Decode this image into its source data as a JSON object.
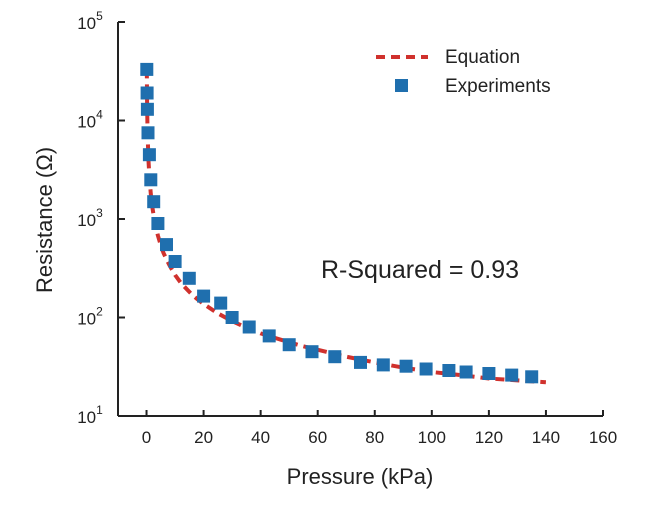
{
  "chart_data": {
    "type": "scatter",
    "xlabel": "Pressure (kPa)",
    "ylabel": "Resistance (Ω)",
    "xlim": [
      -10,
      160
    ],
    "ylim": [
      10,
      100000
    ],
    "yscale": "log",
    "x_ticks": [
      "0",
      "20",
      "40",
      "60",
      "80",
      "100",
      "120",
      "140",
      "160"
    ],
    "x_tick_values": [
      0,
      20,
      40,
      60,
      80,
      100,
      120,
      140,
      160
    ],
    "y_ticks": [
      {
        "base": "10",
        "exp": "1",
        "value": 10
      },
      {
        "base": "10",
        "exp": "2",
        "value": 100
      },
      {
        "base": "10",
        "exp": "3",
        "value": 1000
      },
      {
        "base": "10",
        "exp": "4",
        "value": 10000
      },
      {
        "base": "10",
        "exp": "5",
        "value": 100000
      }
    ],
    "grid": false,
    "legend_position": "top-right",
    "annotation": "R-Squared = 0.93",
    "colors": {
      "equation": "#d0312d",
      "experiments": "#1f6fae",
      "axis": "#222222"
    },
    "series": [
      {
        "name": "Equation",
        "style": "dashed-line",
        "x": [
          0.1,
          0.2,
          0.3,
          0.5,
          0.7,
          1,
          1.5,
          2,
          2.5,
          3,
          4,
          5,
          6,
          7,
          8,
          10,
          12,
          14,
          16,
          18,
          20,
          25,
          30,
          35,
          40,
          45,
          50,
          55,
          60,
          70,
          80,
          90,
          100,
          110,
          120,
          130,
          140
        ],
        "y": [
          33000,
          15000,
          9500,
          5500,
          3900,
          2700,
          1800,
          1350,
          1080,
          900,
          680,
          540,
          450,
          390,
          340,
          270,
          225,
          195,
          170,
          152,
          137,
          110,
          92,
          79,
          69,
          62,
          56,
          51,
          47,
          40,
          35,
          31,
          28,
          26,
          24,
          23,
          22
        ]
      },
      {
        "name": "Experiments",
        "style": "square-marker",
        "x": [
          0.1,
          0.2,
          0.3,
          0.5,
          1,
          1.5,
          2.5,
          4,
          7,
          10,
          15,
          20,
          26,
          30,
          36,
          43,
          50,
          58,
          66,
          75,
          83,
          91,
          98,
          106,
          112,
          120,
          128,
          135
        ],
        "y": [
          33000,
          19000,
          13000,
          7500,
          4500,
          2500,
          1500,
          900,
          550,
          370,
          250,
          165,
          140,
          100,
          80,
          65,
          53,
          45,
          40,
          35,
          33,
          32,
          30,
          29,
          28,
          27,
          26,
          25
        ]
      }
    ]
  }
}
